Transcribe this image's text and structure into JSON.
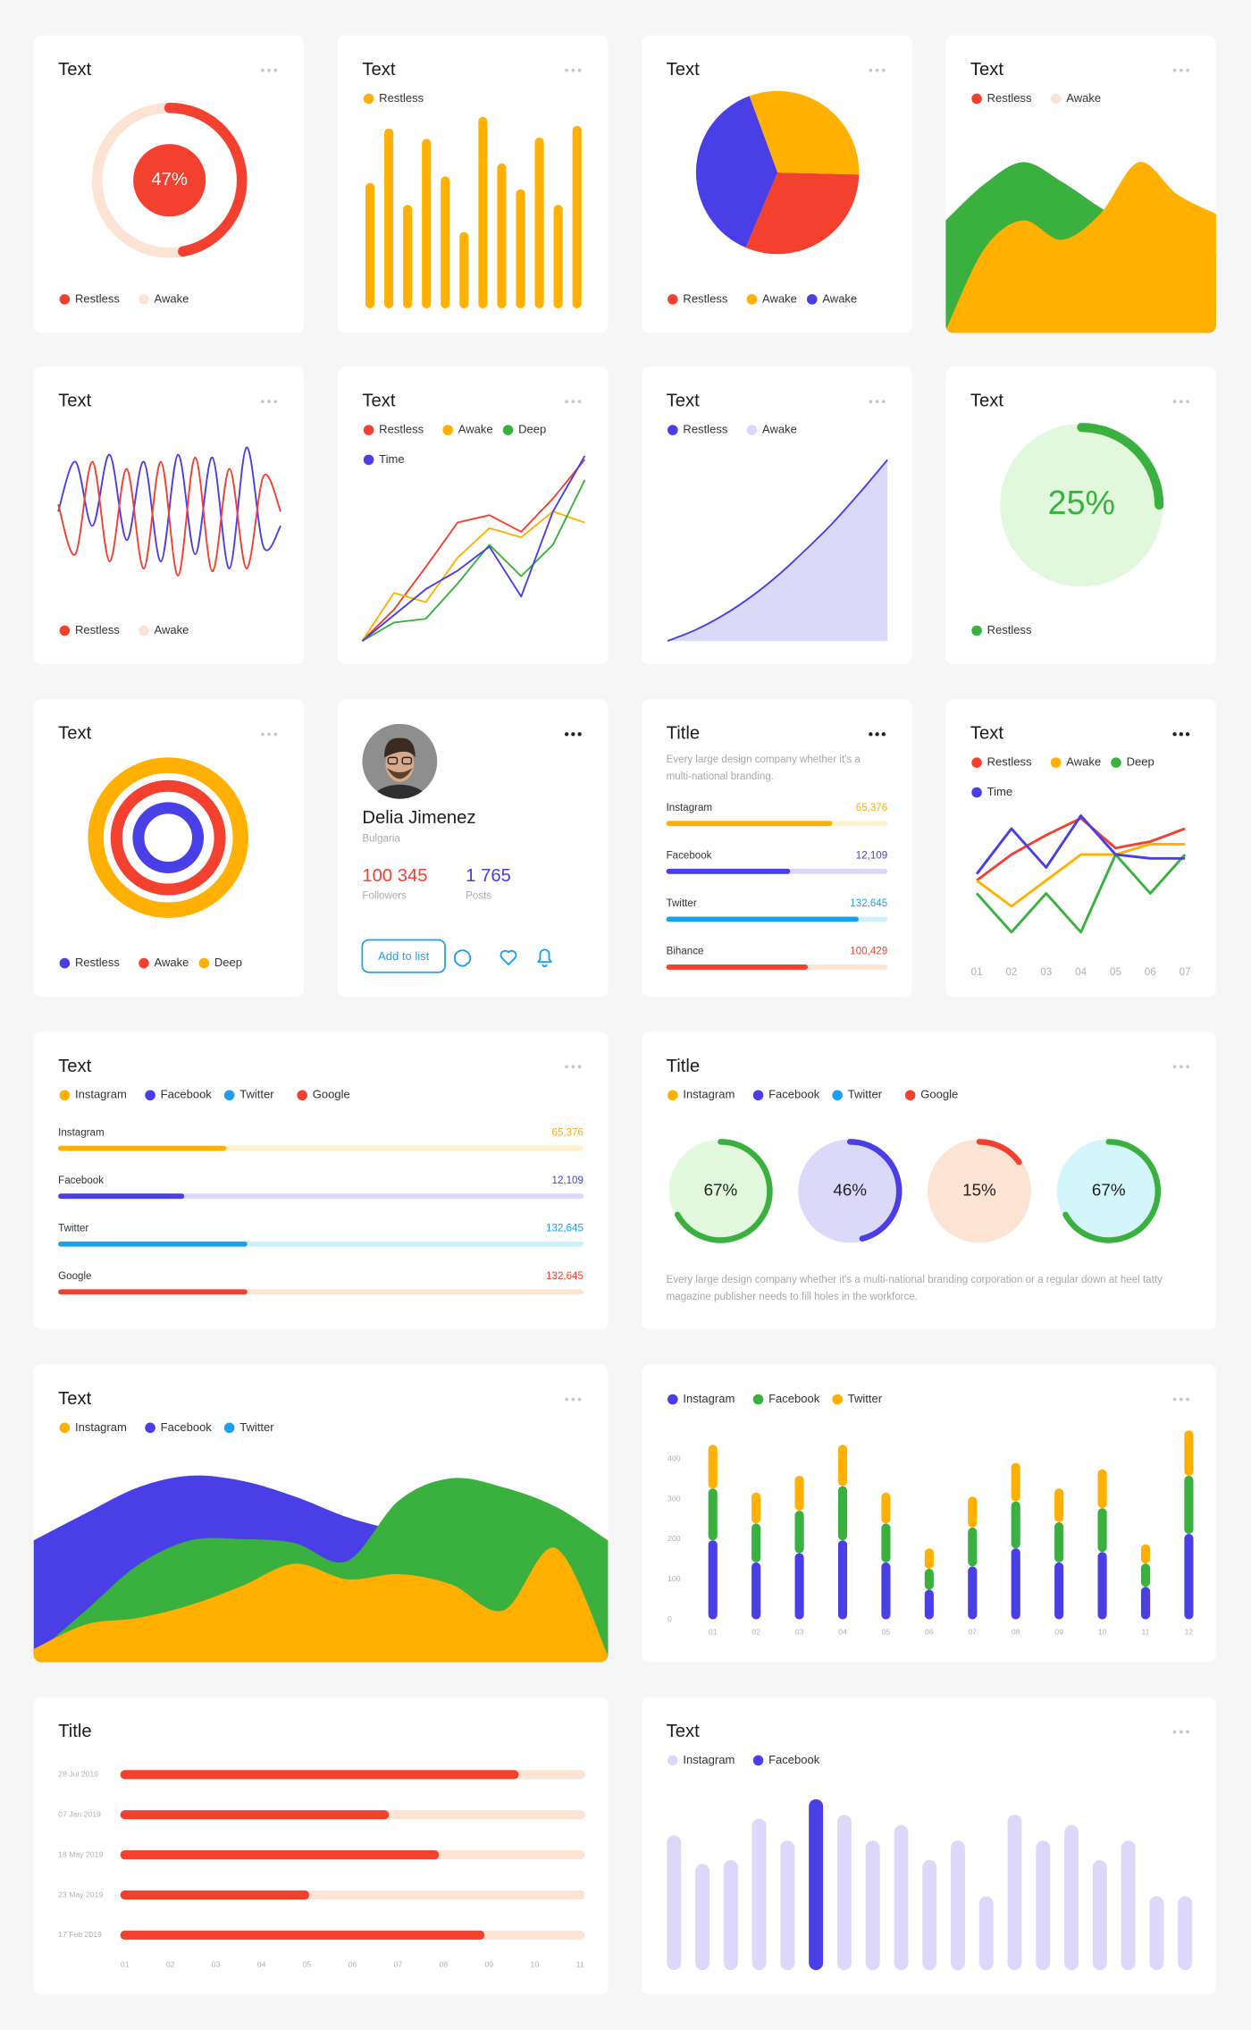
{
  "chart_data": [
    {
      "type": "donut",
      "title": "Text",
      "value": 47,
      "value_label": "47%",
      "legend": [
        {
          "name": "Restless",
          "color": "#f4402f"
        },
        {
          "name": "Awake",
          "color": "#fde3d4"
        }
      ],
      "legend_position": "bottom"
    },
    {
      "type": "bar",
      "title": "Text",
      "legend": [
        {
          "name": "Restless",
          "color": "#ffb000"
        }
      ],
      "values": [
        97,
        139,
        80,
        131,
        102,
        59,
        148,
        112,
        92,
        132,
        80,
        141
      ],
      "color": "#ffb000",
      "ylim": [
        0,
        150
      ]
    },
    {
      "type": "pie",
      "title": "Text",
      "series": [
        {
          "name": "Restless",
          "color": "#f4402f",
          "value": 31
        },
        {
          "name": "Awake",
          "color": "#ffb000",
          "value": 31
        },
        {
          "name": "Awake",
          "color": "#4a3ee6",
          "value": 38
        }
      ],
      "start_angle": 203,
      "direction": "counterclockwise",
      "legend_position": "bottom"
    },
    {
      "type": "area",
      "title": "Text",
      "legend": [
        {
          "name": "Restless",
          "color": "#f4402f"
        },
        {
          "name": "Awake",
          "color": "#fde3d4"
        }
      ],
      "series": [
        {
          "color": "#3ab03e",
          "values": [
            87,
            115,
            132,
            117,
            97,
            80,
            70,
            60
          ]
        },
        {
          "color": "#ffb000",
          "values": [
            2,
            65,
            87,
            72,
            92,
            132,
            107,
            92
          ]
        }
      ],
      "ylim": [
        0,
        230
      ]
    },
    {
      "type": "curve",
      "title": "Text",
      "legend": [
        {
          "name": "Restless",
          "color": "#f4402f"
        },
        {
          "name": "Awake",
          "color": "#fde3d4"
        }
      ],
      "series": [
        {
          "color": "#4a3ee6",
          "values": [
            50,
            85,
            40,
            90,
            30,
            85,
            15,
            90,
            20,
            88,
            10,
            95,
            25,
            40
          ]
        },
        {
          "color": "#f4402f",
          "values": [
            55,
            20,
            85,
            15,
            80,
            10,
            85,
            5,
            88,
            8,
            80,
            10,
            75,
            50
          ]
        }
      ],
      "ylim": [
        0,
        100
      ],
      "legend_position": "bottom"
    },
    {
      "type": "line",
      "title": "Text",
      "series": [
        {
          "name": "Restless",
          "color": "#f4402f",
          "values": [
            0,
            17,
            40,
            64,
            68,
            59,
            77,
            98
          ]
        },
        {
          "name": "Awake",
          "color": "#ffb000",
          "values": [
            0,
            26,
            21,
            45,
            61,
            56,
            70,
            64
          ]
        },
        {
          "name": "Deep",
          "color": "#3ab03e",
          "values": [
            0,
            10,
            12,
            31,
            52,
            35,
            52,
            87
          ]
        },
        {
          "name": "Time",
          "color": "#4a3ee6",
          "values": [
            0,
            14,
            28,
            38,
            51,
            24,
            70,
            100
          ]
        }
      ],
      "ylim": [
        0,
        100
      ]
    },
    {
      "type": "fill",
      "title": "Text",
      "legend": [
        {
          "name": "Restless",
          "color": "#4a3ee6"
        },
        {
          "name": "Awake",
          "color": "#dcd8fa"
        }
      ],
      "values": [
        0,
        6,
        14,
        24,
        36,
        50,
        65,
        82,
        100
      ],
      "color": "#4a3ee6",
      "fill": "#dcd8fa",
      "ylim": [
        0,
        100
      ]
    },
    {
      "type": "gauge",
      "title": "Text",
      "value": 25,
      "value_label": "25%",
      "color": "#3ab03e",
      "background": "#e2f8dc",
      "legend": [
        {
          "name": "Restless",
          "color": "#3ab03e"
        }
      ],
      "legend_position": "bottom"
    },
    {
      "type": "rings",
      "title": "Text",
      "legend": [
        {
          "name": "Restless",
          "color": "#4a3ee6"
        },
        {
          "name": "Awake",
          "color": "#f4402f"
        },
        {
          "name": "Deep",
          "color": "#ffb000"
        }
      ],
      "legend_position": "bottom"
    },
    {
      "type": "profile",
      "name": "Delia Jimenez",
      "location": "Bulgaria",
      "stats": [
        {
          "value": "100 345",
          "label": "Followers",
          "color": "#f4402f"
        },
        {
          "value": "1 765",
          "label": "Posts",
          "color": "#4a3ee6"
        }
      ],
      "button": "Add to list"
    },
    {
      "type": "progress",
      "title": "Title",
      "description": "Every large design company whether it's a multi-national branding.",
      "xlim": [
        0,
        100
      ],
      "items": [
        {
          "name": "Instagram",
          "value": "65,376",
          "progress": 75,
          "color": "#ffb000",
          "track": "#fff2cc"
        },
        {
          "name": "Facebook",
          "value": "12,109",
          "progress": 56,
          "color": "#4a3ee6",
          "track": "#dcd8fa"
        },
        {
          "name": "Twitter",
          "value": "132,645",
          "progress": 87,
          "color": "#1d9ff0",
          "track": "#cdf1fb"
        },
        {
          "name": "Bihance",
          "value": "100,429",
          "progress": 64,
          "color": "#f4402f",
          "track": "#fde3d4"
        }
      ]
    },
    {
      "type": "line",
      "title": "Text",
      "categories": [
        "01",
        "02",
        "03",
        "04",
        "05",
        "06",
        "07"
      ],
      "series": [
        {
          "name": "Restless",
          "color": "#f4402f",
          "values": [
            50,
            70,
            85,
            98,
            75,
            80,
            90
          ]
        },
        {
          "name": "Awake",
          "color": "#ffb000",
          "values": [
            50,
            30,
            50,
            70,
            70,
            78,
            78
          ]
        },
        {
          "name": "Deep",
          "color": "#3ab03e",
          "values": [
            40,
            10,
            40,
            10,
            70,
            40,
            70
          ]
        },
        {
          "name": "Time",
          "color": "#4a3ee6",
          "values": [
            55,
            90,
            60,
            100,
            70,
            67,
            67
          ]
        }
      ],
      "ylim": [
        0,
        110
      ]
    },
    {
      "type": "progress",
      "title": "Text",
      "legend": [
        {
          "name": "Instagram",
          "color": "#ffb000"
        },
        {
          "name": "Facebook",
          "color": "#4a3ee6"
        },
        {
          "name": "Twitter",
          "color": "#1d9ff0"
        },
        {
          "name": "Google",
          "color": "#f4402f"
        }
      ],
      "xlim": [
        0,
        100
      ],
      "items": [
        {
          "name": "Instagram",
          "value": "65,376",
          "progress": 32,
          "color": "#ffb000",
          "track": "#fff2cc"
        },
        {
          "name": "Facebook",
          "value": "12,109",
          "progress": 24,
          "color": "#4a3ee6",
          "track": "#dcd8fa"
        },
        {
          "name": "Twitter",
          "value": "132,645",
          "progress": 36,
          "color": "#1d9ff0",
          "track": "#cdf1fb"
        },
        {
          "name": "Google",
          "value": "132,645",
          "progress": 36,
          "color": "#f4402f",
          "track": "#fde3d4"
        }
      ]
    },
    {
      "type": "radial",
      "title": "Title",
      "legend": [
        {
          "name": "Instagram",
          "color": "#ffb000"
        },
        {
          "name": "Facebook",
          "color": "#4a3ee6"
        },
        {
          "name": "Twitter",
          "color": "#1d9ff0"
        },
        {
          "name": "Google",
          "color": "#f4402f"
        }
      ],
      "items": [
        {
          "value": 67,
          "label": "67%",
          "color": "#3ab03e",
          "background": "#e3f9dd"
        },
        {
          "value": 46,
          "label": "46%",
          "color": "#4a3ee6",
          "background": "#dcd8fa"
        },
        {
          "value": 15,
          "label": "15%",
          "color": "#f4402f",
          "background": "#fde3d4"
        },
        {
          "value": 67,
          "label": "67%",
          "color": "#3ab03e",
          "background": "#d3f6fb"
        }
      ],
      "description": "Every large design company whether it's a multi-national branding corporation or a regular down at heel tatty magazine publisher needs to fill holes in the workforce."
    },
    {
      "type": "area",
      "title": "Text",
      "legend": [
        {
          "name": "Instagram",
          "color": "#ffb000"
        },
        {
          "name": "Facebook",
          "color": "#4a3ee6"
        },
        {
          "name": "Twitter",
          "color": "#1d9ff0"
        }
      ],
      "series": [
        {
          "color": "#4a3ee6",
          "values": [
            94,
            115,
            135,
            144,
            140,
            128,
            112,
            100,
            80,
            60,
            40,
            20
          ]
        },
        {
          "color": "#3ab03e",
          "values": [
            5,
            40,
            75,
            94,
            95,
            92,
            78,
            125,
            142,
            135,
            120,
            94
          ]
        },
        {
          "color": "#ffb000",
          "values": [
            10,
            29,
            34,
            44,
            59,
            76,
            64,
            68,
            60,
            40,
            88,
            5
          ]
        }
      ],
      "ylim": [
        0,
        230
      ]
    },
    {
      "type": "stacked_bar",
      "categories": [
        "01",
        "02",
        "03",
        "04",
        "05",
        "06",
        "07",
        "08",
        "09",
        "10",
        "11",
        "12"
      ],
      "series": [
        {
          "name": "Instagram",
          "color": "#4a3ee6",
          "values": [
            197,
            142,
            165,
            197,
            142,
            74,
            132,
            177,
            142,
            168,
            81,
            213
          ]
        },
        {
          "name": "Facebook",
          "color": "#3ab03e",
          "values": [
            129,
            97,
            106,
            135,
            97,
            52,
            97,
            117,
            100,
            109,
            58,
            145
          ]
        },
        {
          "name": "Twitter",
          "color": "#ffb000",
          "values": [
            109,
            77,
            87,
            103,
            77,
            51,
            77,
            96,
            84,
            97,
            48,
            113
          ]
        }
      ],
      "ylim": [
        0,
        480
      ],
      "yticks": [
        0,
        100,
        200,
        300,
        400
      ],
      "grid": false
    },
    {
      "type": "timeline",
      "title": "Title",
      "categories": [
        "28 Jul 2019",
        "07 Jan 2019",
        "18 May 2019",
        "23 May 2019",
        "17 Feb 2019"
      ],
      "values": [
        9.65,
        6.8,
        7.9,
        5.05,
        8.9
      ],
      "color": "#f4402f",
      "track": "#fde3d4",
      "xlim": [
        0.9,
        11.1
      ],
      "xticks": [
        {
          "value": 1,
          "label": "01"
        },
        {
          "value": 2,
          "label": "02"
        },
        {
          "value": 3,
          "label": "03"
        },
        {
          "value": 4,
          "label": "04"
        },
        {
          "value": 5,
          "label": "05"
        },
        {
          "value": 6,
          "label": "06"
        },
        {
          "value": 7,
          "label": "07"
        },
        {
          "value": 8,
          "label": "08"
        },
        {
          "value": 9,
          "label": "09"
        },
        10,
        11
      ]
    },
    {
      "type": "bar",
      "title": "Text",
      "series": [
        {
          "name": "Instagram",
          "color": "#dcd8fa",
          "values": [
            104,
            82,
            85,
            117,
            100,
            null,
            120,
            100,
            112,
            85,
            100,
            57,
            120,
            100,
            112,
            85,
            100,
            57,
            57
          ]
        },
        {
          "name": "Facebook",
          "color": "#4a3ee6",
          "values": [
            null,
            null,
            null,
            null,
            null,
            132,
            null,
            null,
            null,
            null,
            null,
            null,
            null,
            null,
            null,
            null,
            null,
            null,
            null
          ]
        }
      ],
      "ylim": [
        0,
        150
      ]
    }
  ]
}
